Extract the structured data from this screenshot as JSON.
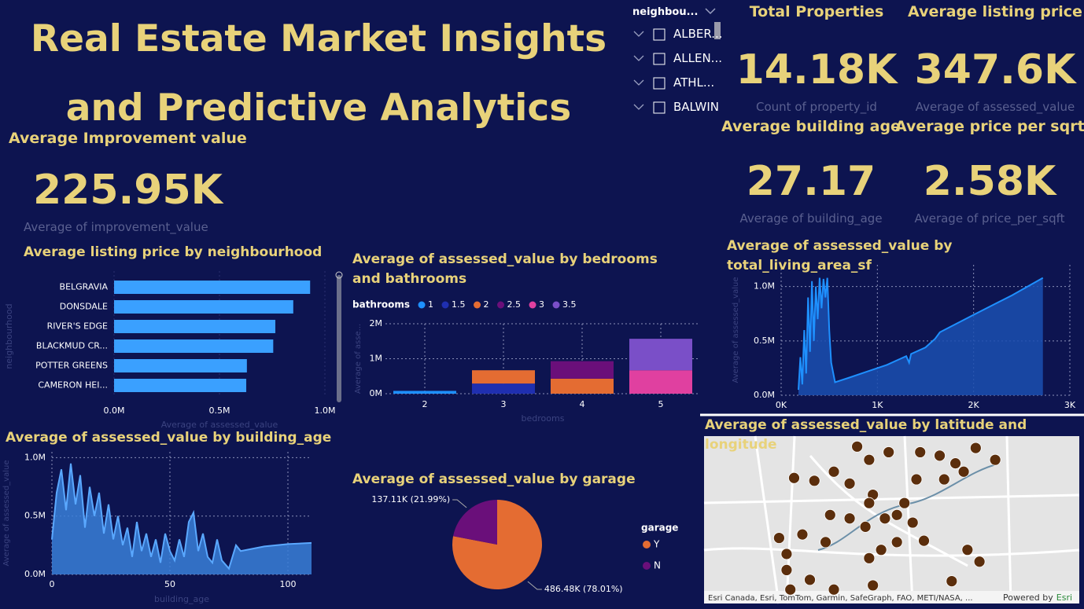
{
  "title": "Real Estate Market Insights and Predictive Analytics",
  "slicer": {
    "header": "neighbou...",
    "items": [
      "ALBER...",
      "ALLEN...",
      "ATHL...",
      "BALWIN"
    ]
  },
  "cards": [
    {
      "title": "Total Properties",
      "value": "14.18K",
      "label": "Count of property_id"
    },
    {
      "title": "Average listing price",
      "value": "347.6K",
      "label": "Average of assessed_value"
    },
    {
      "title": "Average building age",
      "value": "27.17",
      "label": "Average of building_age"
    },
    {
      "title": "Average price per sqrt",
      "value": "2.58K",
      "label": "Average of price_per_sqft"
    },
    {
      "title": "Average Improvement value",
      "value": "225.95K",
      "label": "Average of improvement_value"
    }
  ],
  "chart_data": [
    {
      "type": "hbar",
      "title": "Average listing price by neighbourhood",
      "x_label": "Average of assessed_value",
      "y_label": "neighbourhood",
      "categories": [
        "BELGRAVIA",
        "DONSDALE",
        "RIVER'S EDGE",
        "BLACKMUD CR...",
        "POTTER GREENS",
        "CAMERON HEI..."
      ],
      "values": [
        930000,
        850000,
        765000,
        755000,
        630000,
        627000
      ],
      "color": "#3aa0ff",
      "xlim": [
        0,
        1000000
      ],
      "xticks": [
        {
          "value": 0,
          "label": "0.0M"
        },
        {
          "value": 500000,
          "label": "0.5M"
        },
        {
          "value": 1000000,
          "label": "1.0M"
        }
      ],
      "grid": true
    },
    {
      "type": "stacked_bar",
      "title": "Average of assessed_value by bedrooms and bathrooms",
      "x_label": "bedrooms",
      "y_label": "Average of asse...",
      "legend_title": "bathrooms",
      "categories": [
        "2",
        "3",
        "4",
        "5"
      ],
      "series": [
        {
          "name": "1",
          "color": "#1e90ff",
          "values": [
            80000,
            null,
            null,
            null
          ]
        },
        {
          "name": "1.5",
          "color": "#1f2fb0",
          "values": [
            null,
            290000,
            null,
            null
          ]
        },
        {
          "name": "2",
          "color": "#e46c32",
          "values": [
            null,
            380000,
            430000,
            null
          ]
        },
        {
          "name": "2.5",
          "color": "#6a0f7a",
          "values": [
            null,
            null,
            500000,
            null
          ]
        },
        {
          "name": "3",
          "color": "#e040a0",
          "values": [
            null,
            null,
            null,
            670000
          ]
        },
        {
          "name": "3.5",
          "color": "#7a4fc8",
          "values": [
            null,
            null,
            null,
            900000
          ]
        }
      ],
      "ylim": [
        0,
        2000000
      ],
      "yticks": [
        {
          "value": 0,
          "label": "0M"
        },
        {
          "value": 1000000,
          "label": "1M"
        },
        {
          "value": 2000000,
          "label": "2M"
        }
      ],
      "grid": true
    },
    {
      "type": "area",
      "title": "Average of assessed_value by total_living_area_sf",
      "y_label": "Average of assessed_value",
      "color": "#1e90ff",
      "fill": "#1b4fb0",
      "x": [
        180,
        200,
        220,
        240,
        260,
        280,
        300,
        320,
        340,
        360,
        380,
        400,
        420,
        440,
        460,
        480,
        500,
        520,
        560,
        700,
        900,
        1100,
        1300,
        1330,
        1350,
        1500,
        1600,
        1650,
        2000,
        2400,
        2720
      ],
      "values": [
        50000,
        350000,
        100000,
        600000,
        200000,
        900000,
        400000,
        1050000,
        500000,
        1000000,
        700000,
        1080000,
        800000,
        1070000,
        900000,
        1080000,
        600000,
        300000,
        120000,
        160000,
        220000,
        280000,
        360000,
        300000,
        380000,
        440000,
        520000,
        580000,
        740000,
        920000,
        1080000
      ],
      "xlim": [
        0,
        3000
      ],
      "xticks": [
        {
          "value": 0,
          "label": "0K"
        },
        {
          "value": 1000,
          "label": "1K"
        },
        {
          "value": 2000,
          "label": "2K"
        },
        {
          "value": 3000,
          "label": "3K"
        }
      ],
      "ylim": [
        0,
        1200000
      ],
      "yticks": [
        {
          "value": 0,
          "label": "0.0M"
        },
        {
          "value": 500000,
          "label": "0.5M"
        },
        {
          "value": 1000000,
          "label": "1.0M"
        }
      ],
      "grid": true
    },
    {
      "type": "area",
      "title": "Average of assessed_value by building_age",
      "x_label": "building_age",
      "y_label": "Average of assessed_value",
      "color": "#5aa8ff",
      "fill": "#3a7fd8",
      "x": [
        0,
        2,
        4,
        6,
        8,
        10,
        12,
        14,
        16,
        18,
        20,
        22,
        24,
        26,
        28,
        30,
        32,
        34,
        36,
        38,
        40,
        42,
        44,
        46,
        48,
        50,
        52,
        54,
        56,
        58,
        60,
        62,
        64,
        66,
        68,
        70,
        72,
        75,
        78,
        80,
        90,
        100,
        110
      ],
      "values": [
        300000,
        700000,
        900000,
        550000,
        950000,
        600000,
        850000,
        400000,
        750000,
        500000,
        700000,
        350000,
        600000,
        300000,
        500000,
        250000,
        400000,
        150000,
        450000,
        200000,
        350000,
        150000,
        300000,
        100000,
        350000,
        200000,
        120000,
        300000,
        150000,
        450000,
        530000,
        200000,
        350000,
        150000,
        100000,
        300000,
        120000,
        50000,
        250000,
        200000,
        240000,
        260000,
        270000
      ],
      "xlim": [
        0,
        110
      ],
      "xticks": [
        0,
        50,
        100
      ],
      "ylim": [
        0,
        1050000
      ],
      "yticks": [
        {
          "value": 0,
          "label": "0.0M"
        },
        {
          "value": 500000,
          "label": "0.5M"
        },
        {
          "value": 1000000,
          "label": "1.0M"
        }
      ],
      "grid": true
    },
    {
      "type": "pie",
      "title": "Average of assessed_value by garage",
      "legend_title": "garage",
      "categories": [
        "Y",
        "N"
      ],
      "values": [
        486480,
        137110
      ],
      "value_labels": [
        "486.48K (78.01%)",
        "137.11K (21.99%)"
      ],
      "colors": [
        "#e46c32",
        "#6a0f7a"
      ]
    },
    {
      "type": "map",
      "title": "Average of assessed_value by latitude and longitude",
      "color": "#5b2e0c",
      "attribution": "Esri Canada, Esri, TomTom, Garmin, SafeGraph, FAO, METI/NASA, ...",
      "credit": "Powered by",
      "credit_link": "Esri",
      "xlim": [
        -113.75,
        -113.25
      ],
      "ylim": [
        53.38,
        53.62
      ],
      "x": [
        -113.546,
        -113.53,
        -113.504,
        -113.462,
        -113.436,
        -113.415,
        -113.388,
        -113.362,
        -113.63,
        -113.603,
        -113.577,
        -113.556,
        -113.525,
        -113.483,
        -113.467,
        -113.43,
        -113.404,
        -113.53,
        -113.493,
        -113.472,
        -113.582,
        -113.556,
        -113.535,
        -113.509,
        -113.619,
        -113.65,
        -113.493,
        -113.457,
        -113.64,
        -113.588,
        -113.514,
        -113.53,
        -113.383,
        -113.64,
        -113.609,
        -113.525,
        -113.42,
        -113.577,
        -113.635,
        -113.399
      ],
      "y": [
        53.605,
        53.586,
        53.597,
        53.597,
        53.592,
        53.581,
        53.603,
        53.586,
        53.56,
        53.556,
        53.569,
        53.552,
        53.536,
        53.524,
        53.558,
        53.558,
        53.569,
        53.524,
        53.507,
        53.496,
        53.507,
        53.502,
        53.49,
        53.502,
        53.479,
        53.474,
        53.468,
        53.47,
        53.451,
        53.468,
        53.457,
        53.445,
        53.44,
        53.428,
        53.414,
        53.406,
        53.412,
        53.4,
        53.4,
        53.457
      ]
    }
  ]
}
